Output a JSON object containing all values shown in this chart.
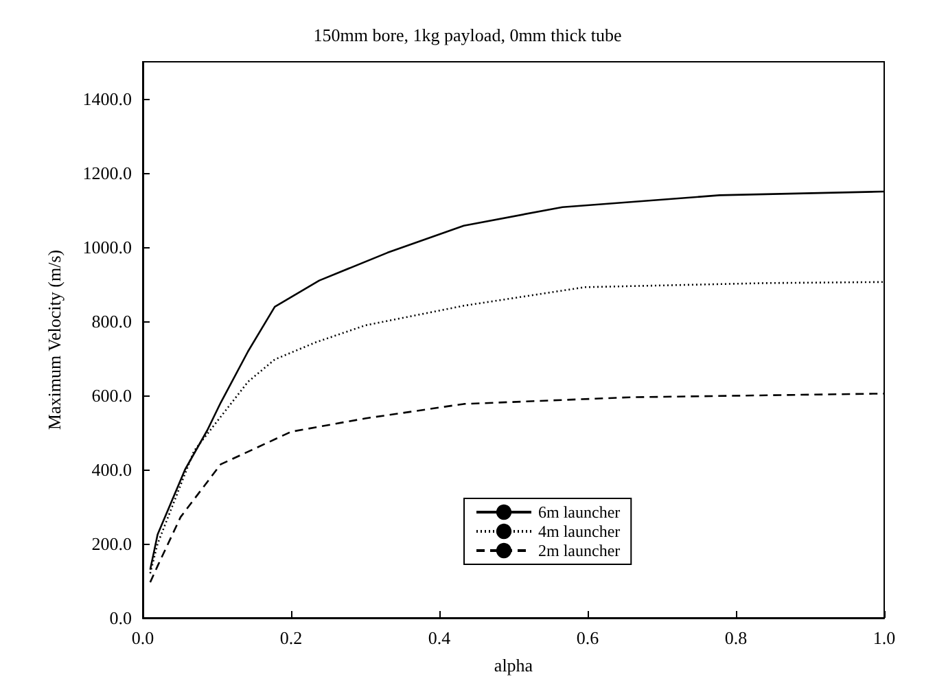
{
  "chart_data": {
    "type": "line",
    "title": "150mm bore, 1kg payload, 0mm thick tube",
    "xlabel": "alpha",
    "ylabel": "Maximum Velocity (m/s)",
    "xlim": [
      0,
      1
    ],
    "ylim": [
      0,
      1500
    ],
    "xticks": [
      {
        "value": 0,
        "label": "0.0"
      },
      {
        "value": 0.2,
        "label": "0.2"
      },
      {
        "value": 0.4,
        "label": "0.4"
      },
      {
        "value": 0.6,
        "label": "0.6"
      },
      {
        "value": 0.8,
        "label": "0.8"
      },
      {
        "value": 1,
        "label": "1.0"
      }
    ],
    "yticks": [
      {
        "value": 0,
        "label": "0.0"
      },
      {
        "value": 200,
        "label": "200.0"
      },
      {
        "value": 400,
        "label": "400.0"
      },
      {
        "value": 600,
        "label": "600.0"
      },
      {
        "value": 800,
        "label": "800.0"
      },
      {
        "value": 1000,
        "label": "1000.0"
      },
      {
        "value": 1200,
        "label": "1200.0"
      },
      {
        "value": 1400,
        "label": "1400.0"
      }
    ],
    "grid": false,
    "legend": "bottom",
    "marker": "none",
    "series": [
      {
        "name": "6m launcher",
        "color": "#000000",
        "line_style": "solid",
        "x": [
          0.01,
          0.02,
          0.057,
          0.087,
          0.105,
          0.142,
          0.178,
          0.238,
          0.33,
          0.433,
          0.566,
          0.778,
          1.0
        ],
        "values": [
          130,
          225,
          400,
          506,
          580,
          719,
          839,
          910,
          985,
          1058,
          1108,
          1140,
          1150
        ]
      },
      {
        "name": "4m launcher",
        "color": "#000000",
        "line_style": "dotted",
        "x": [
          0.01,
          0.02,
          0.069,
          0.142,
          0.178,
          0.233,
          0.3,
          0.433,
          0.596,
          0.838,
          1.0
        ],
        "values": [
          120,
          200,
          450,
          637,
          697,
          743,
          789,
          842,
          892,
          903,
          906
        ]
      },
      {
        "name": "2m launcher",
        "color": "#000000",
        "line_style": "dashed",
        "x": [
          0.01,
          0.02,
          0.051,
          0.105,
          0.2,
          0.3,
          0.433,
          0.657,
          1.0
        ],
        "values": [
          96,
          140,
          272,
          414,
          502,
          538,
          577,
          595,
          605
        ]
      }
    ]
  }
}
